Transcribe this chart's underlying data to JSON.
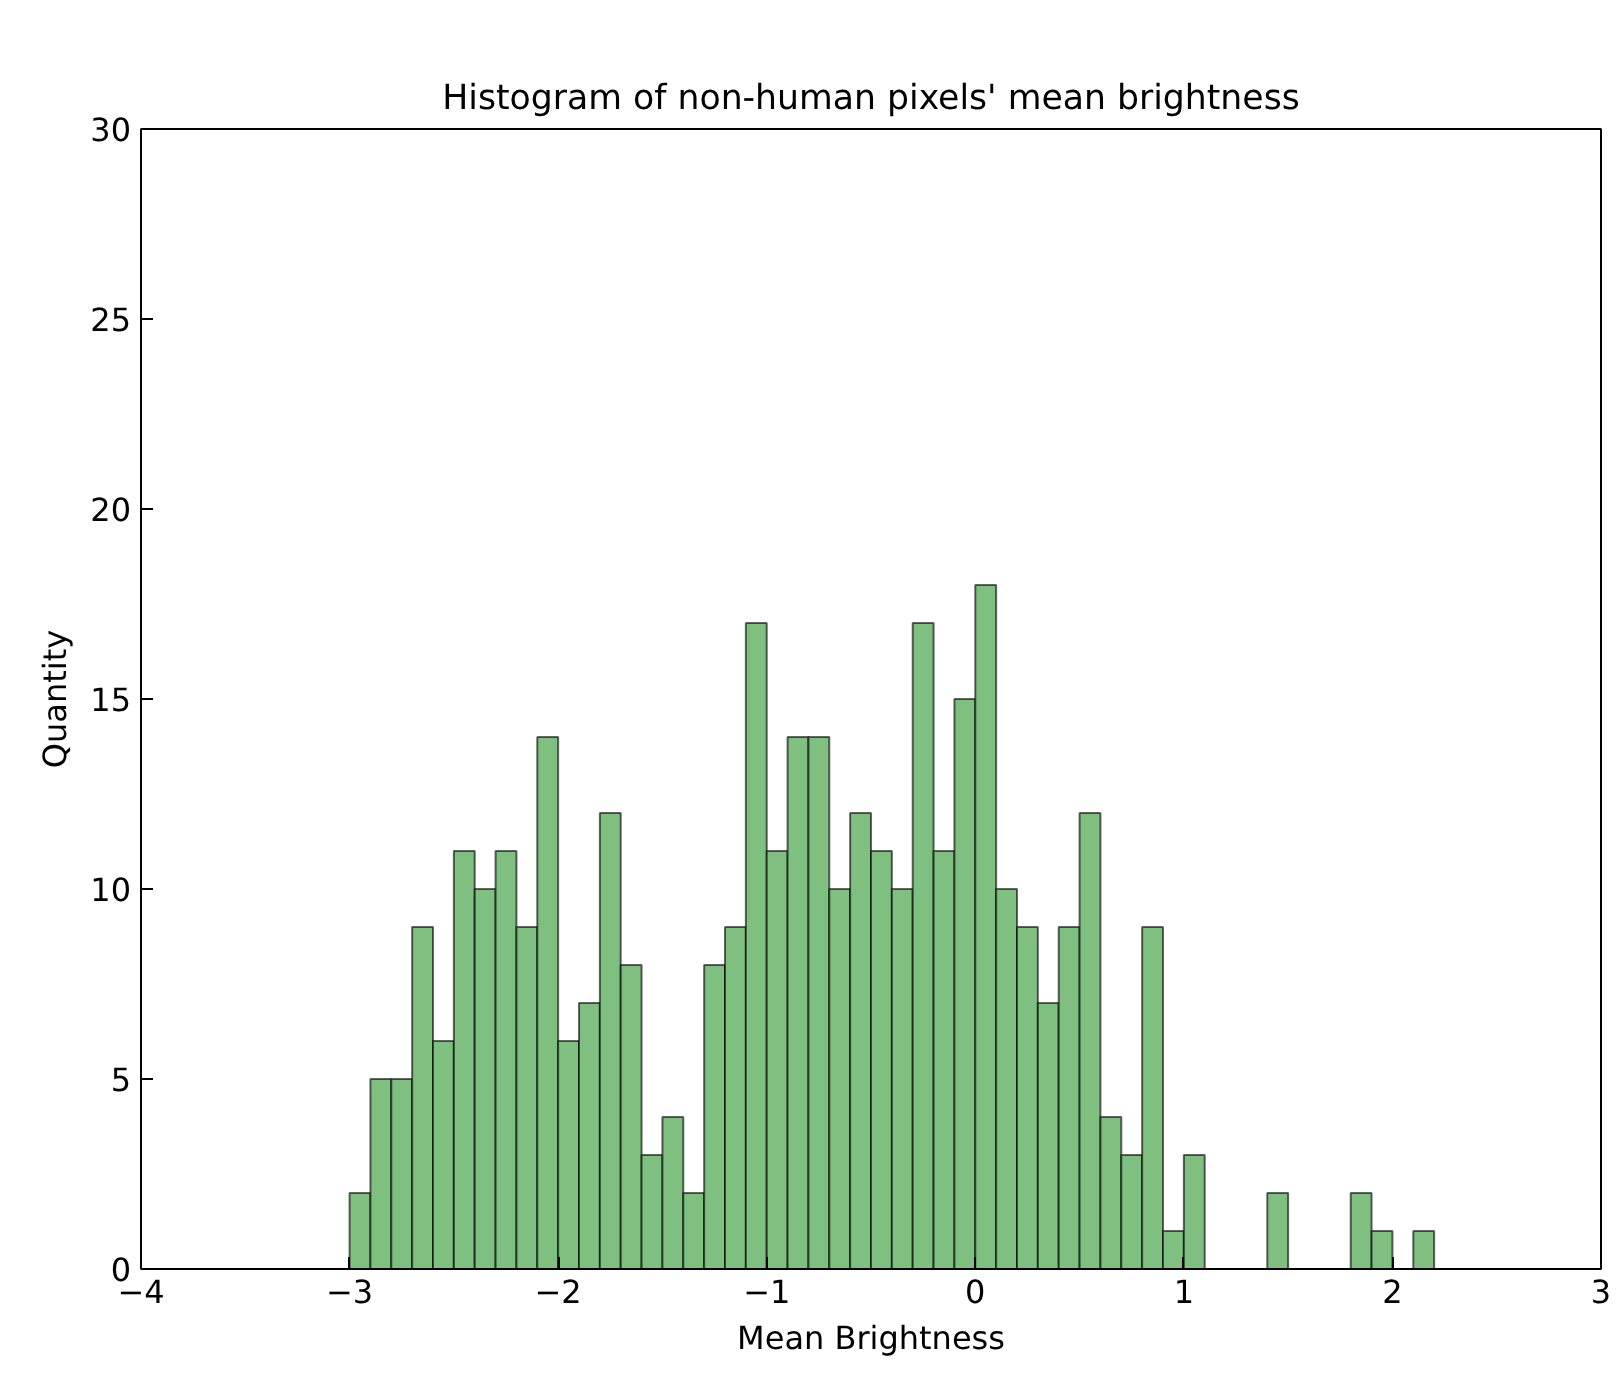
{
  "chart_data": {
    "type": "histogram",
    "title": "Histogram of non-human pixels' mean brightness",
    "xlabel": "Mean Brightness",
    "ylabel": "Quantity",
    "bins": [
      -3.0,
      -2.9,
      -2.8,
      -2.7,
      -2.6,
      -2.5,
      -2.4,
      -2.3,
      -2.2,
      -2.1,
      -2.0,
      -1.9,
      -1.8,
      -1.7,
      -1.6,
      -1.5,
      -1.4,
      -1.3,
      -1.2,
      -1.1,
      -1.0,
      -0.9,
      -0.8,
      -0.7,
      -0.6,
      -0.5,
      -0.4,
      -0.3,
      -0.2,
      -0.1,
      0.0,
      0.1,
      0.2,
      0.3,
      0.4,
      0.5,
      0.6,
      0.7,
      0.8,
      0.9,
      1.0,
      1.1,
      1.2,
      1.3,
      1.4,
      1.5,
      1.6,
      1.7,
      1.8,
      1.9,
      2.0,
      2.1,
      2.2
    ],
    "values": [
      2,
      5,
      5,
      9,
      6,
      11,
      10,
      11,
      9,
      14,
      6,
      7,
      12,
      8,
      3,
      4,
      2,
      8,
      9,
      17,
      11,
      14,
      14,
      10,
      12,
      11,
      10,
      17,
      11,
      15,
      18,
      10,
      9,
      7,
      9,
      12,
      4,
      3,
      9,
      1,
      3,
      0,
      0,
      0,
      2,
      0,
      0,
      0,
      2,
      1,
      0,
      1
    ],
    "color": "#7fbf7f",
    "xlim": [
      -4,
      3
    ],
    "ylim": [
      0,
      30
    ],
    "xticks": [
      {
        "value": -4,
        "label": "−4"
      },
      {
        "value": -3,
        "label": "−3"
      },
      {
        "value": -2,
        "label": "−2"
      },
      {
        "value": -1,
        "label": "−1"
      },
      0,
      1,
      2,
      3
    ],
    "yticks": [
      0,
      5,
      10,
      15,
      20,
      25,
      30
    ],
    "grid": false
  }
}
